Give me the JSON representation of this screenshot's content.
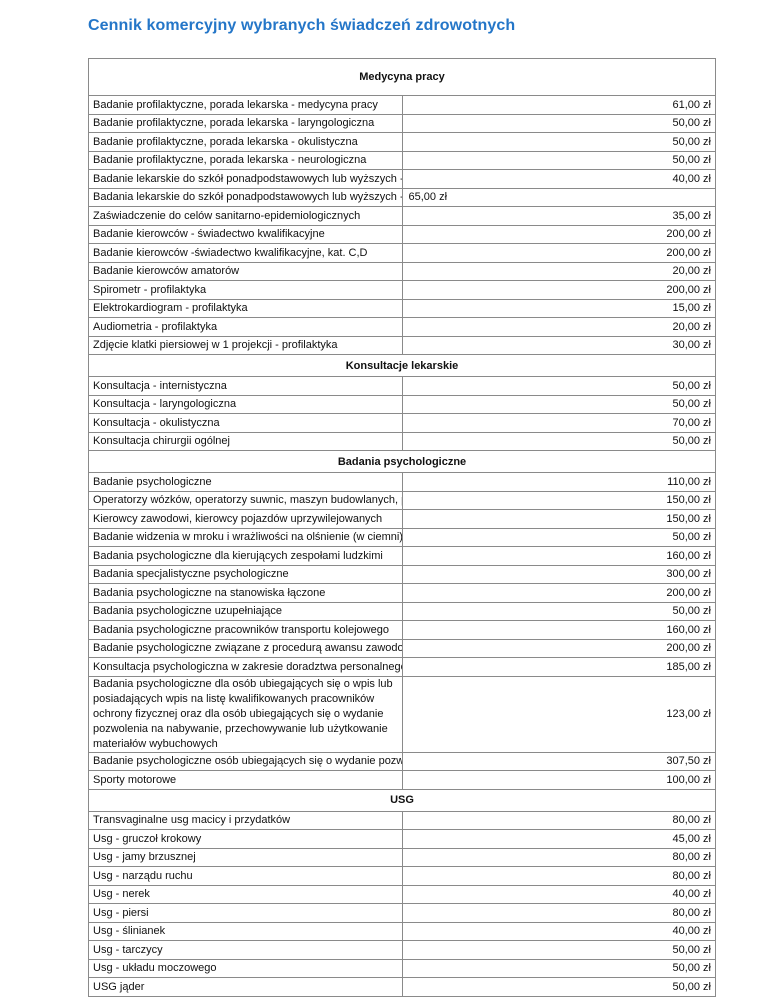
{
  "document": {
    "title": "Cennik komercyjny wybranych świadczeń zdrowotnych",
    "sections": [
      {
        "heading": "Medycyna pracy",
        "rows": [
          {
            "name": "Badanie profilaktyczne, porada lekarska - medycyna pracy",
            "price": "61,00 zł"
          },
          {
            "name": "Badanie profilaktyczne, porada lekarska - laryngologiczna",
            "price": "50,00 zł"
          },
          {
            "name": "Badanie profilaktyczne, porada lekarska - okulistyczna",
            "price": "50,00 zł"
          },
          {
            "name": "Badanie profilaktyczne, porada lekarska - neurologiczna",
            "price": "50,00 zł"
          },
          {
            "name": "Badanie lekarskie do szkół ponadpodstawowych lub wyższych - bez narażeń",
            "price": "40,00 zł"
          },
          {
            "name": "Badania lekarskie do szkół ponadpodstawowych lub wyższych - z narażeniami",
            "price": "65,00 zł"
          },
          {
            "name": "Zaświadczenie do celów sanitarno-epidemiologicznych",
            "price": "35,00 zł"
          },
          {
            "name": "Badanie kierowców - świadectwo kwalifikacyjne",
            "price": "200,00 zł"
          },
          {
            "name": "Badanie kierowców -świadectwo kwalifikacyjne, kat. C,D",
            "price": "200,00 zł"
          },
          {
            "name": "Badanie kierowców amatorów",
            "price": "20,00 zł"
          },
          {
            "name": "Spirometr - profilaktyka",
            "price": "200,00 zł"
          },
          {
            "name": "Elektrokardiogram - profilaktyka",
            "price": "15,00 zł"
          },
          {
            "name": "Audiometria - profilaktyka",
            "price": "20,00 zł"
          },
          {
            "name": "Zdjęcie klatki piersiowej w 1 projekcji - profilaktyka",
            "price": "30,00 zł"
          }
        ]
      },
      {
        "heading": "Konsultacje lekarskie",
        "rows": [
          {
            "name": "Konsultacja - internistyczna",
            "price": "50,00 zł"
          },
          {
            "name": "Konsultacja - laryngologiczna",
            "price": "50,00 zł"
          },
          {
            "name": "Konsultacja - okulistyczna",
            "price": "70,00 zł"
          },
          {
            "name": "Konsultacja chirurgii ogólnej",
            "price": "50,00 zł"
          }
        ]
      },
      {
        "heading": "Badania psychologiczne",
        "rows": [
          {
            "name": "Badanie psychologiczne",
            "price": "110,00 zł"
          },
          {
            "name": "Operatorzy wózków, operatorzy suwnic, maszyn budowlanych, pracownicy wysokościowi",
            "price": "150,00 zł"
          },
          {
            "name": "Kierowcy zawodowi, kierowcy pojazdów uprzywilejowanych",
            "price": "150,00 zł"
          },
          {
            "name": "Badanie widzenia w mroku i wrażliwości na olśnienie (w ciemni)",
            "price": "50,00 zł"
          },
          {
            "name": "Badania psychologiczne dla kierujących zespołami ludzkimi",
            "price": "160,00 zł"
          },
          {
            "name": "Badania specjalistyczne psychologiczne",
            "price": "300,00 zł"
          },
          {
            "name": "Badania psychologiczne na stanowiska łączone",
            "price": "200,00 zł"
          },
          {
            "name": "Badania psychologiczne uzupełniające",
            "price": "50,00 zł"
          },
          {
            "name": "Badania psychologiczne pracowników transportu kolejowego",
            "price": "160,00 zł"
          },
          {
            "name": "Badanie psychologiczne związane z procedurą awansu zawodowego",
            "price": "200,00 zł"
          },
          {
            "name": "Konsultacja psychologiczna w zakresie doradztwa personalnego (cena za osobę)",
            "price": "185,00 zł"
          },
          {
            "name": "Badania psychologiczne dla osób ubiegających się o wpis lub posiadających wpis na listę kwalifikowanych pracowników ochrony fizycznej oraz dla osób ubiegających się o wydanie pozwolenia na nabywanie, przechowywanie lub użytkowanie materiałów wybuchowych",
            "price": "123,00 zł"
          },
          {
            "name": "Badanie psychologiczne osób ubiegających się o wydanie pozwolenia na broń (np. myśliwi)",
            "price": "307,50 zł"
          },
          {
            "name": "Sporty motorowe",
            "price": "100,00 zł"
          }
        ]
      },
      {
        "heading": "USG",
        "rows": [
          {
            "name": "Transvaginalne usg macicy i przydatków",
            "price": "80,00 zł"
          },
          {
            "name": "Usg - gruczoł krokowy",
            "price": "45,00 zł"
          },
          {
            "name": "Usg - jamy brzusznej",
            "price": "80,00 zł"
          },
          {
            "name": "Usg - narządu ruchu",
            "price": "80,00 zł"
          },
          {
            "name": "Usg - nerek",
            "price": "40,00 zł"
          },
          {
            "name": "Usg - piersi",
            "price": "80,00 zł"
          },
          {
            "name": "Usg - ślinianek",
            "price": "40,00 zł"
          },
          {
            "name": "Usg - tarczycy",
            "price": "50,00 zł"
          },
          {
            "name": "Usg - układu moczowego",
            "price": "50,00 zł"
          },
          {
            "name": "USG jąder",
            "price": "50,00 zł"
          }
        ]
      }
    ]
  }
}
